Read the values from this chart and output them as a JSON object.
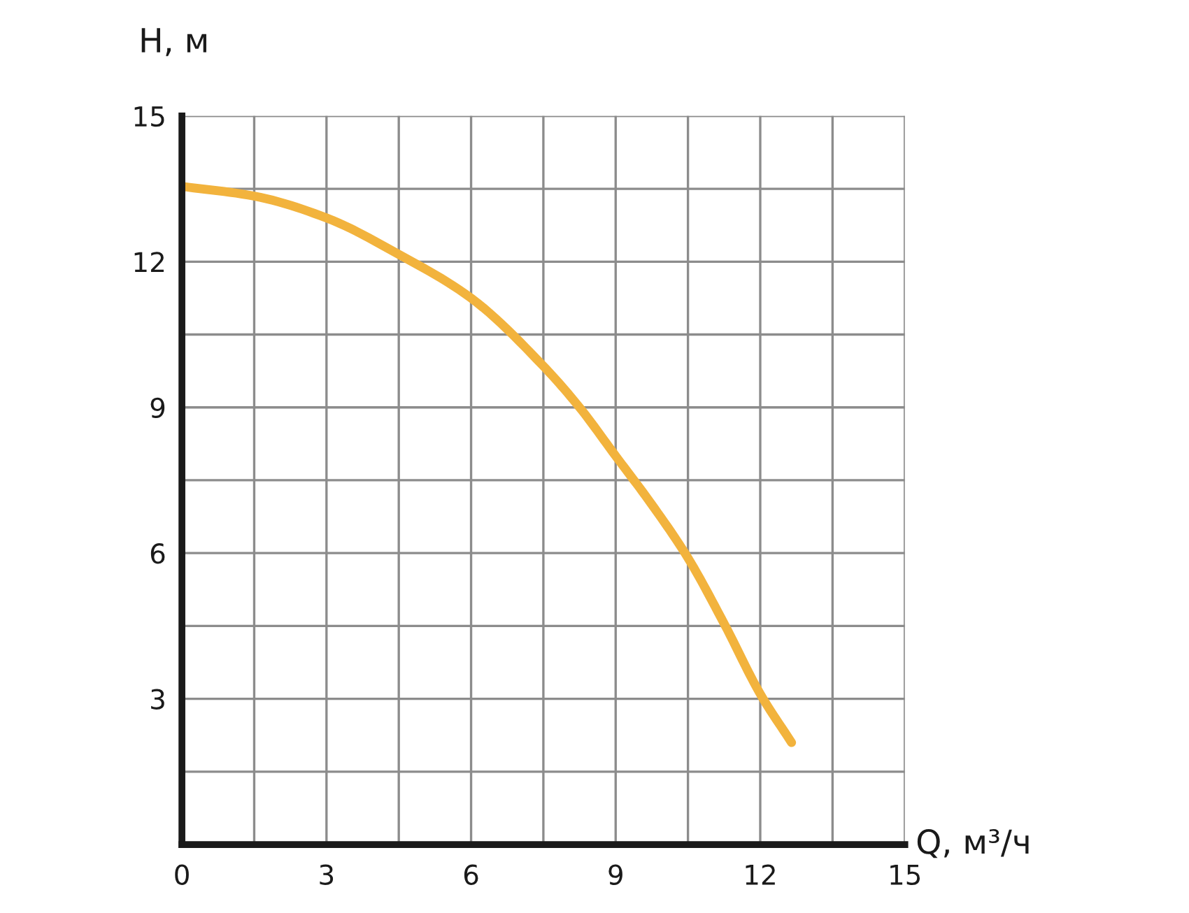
{
  "chart_data": {
    "type": "line",
    "xlabel": "Q, м³/ч",
    "ylabel": "H, м",
    "x": [
      0,
      1.5,
      3,
      4.5,
      6,
      7.5,
      8.25,
      9,
      9.75,
      10.5,
      11.25,
      12,
      12.65
    ],
    "series": [
      {
        "color": "#f2b33d",
        "values": [
          13.55,
          13.35,
          12.9,
          12.15,
          11.25,
          9.85,
          9.0,
          8.0,
          7.0,
          5.9,
          4.55,
          3.1,
          2.1
        ]
      }
    ],
    "xlim": [
      0,
      15
    ],
    "ylim": [
      0,
      15
    ],
    "xticks": [
      0,
      {
        "value": 1.5,
        "label": null
      },
      3,
      {
        "value": 4.5,
        "label": null
      },
      6,
      {
        "value": 7.5,
        "label": null
      },
      9,
      {
        "value": 10.5,
        "label": null
      },
      12,
      {
        "value": 13.5,
        "label": null
      },
      15
    ],
    "yticks": [
      {
        "value": 1.5,
        "label": null
      },
      3,
      {
        "value": 4.5,
        "label": null
      },
      6,
      {
        "value": 7.5,
        "label": null
      },
      9,
      {
        "value": 10.5,
        "label": null
      },
      12,
      {
        "value": 13.5,
        "label": null
      },
      15
    ],
    "grid": true,
    "line_style": "solid"
  }
}
